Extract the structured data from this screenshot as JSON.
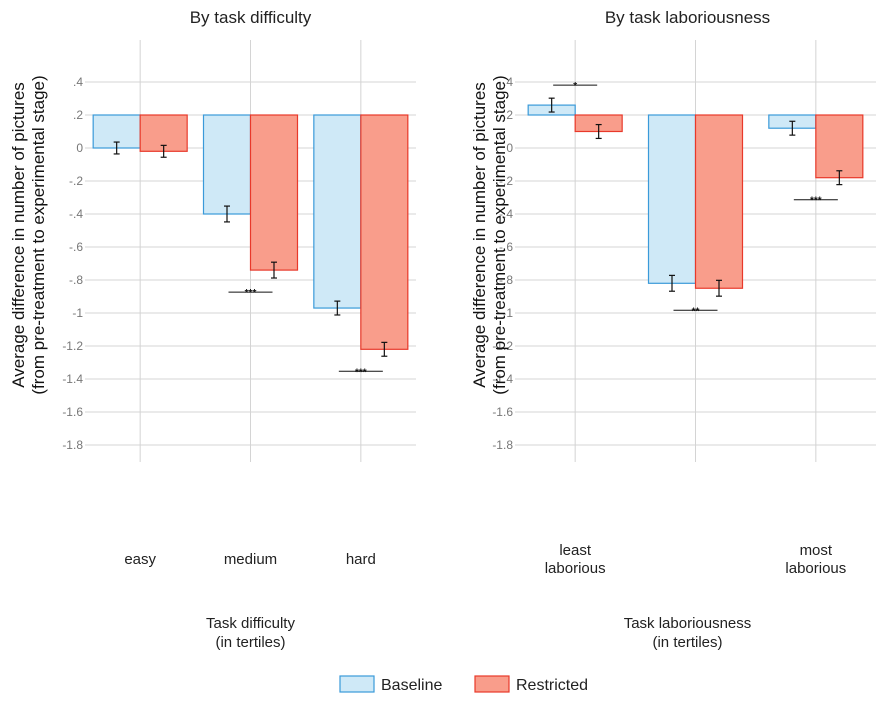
{
  "chart_data": [
    {
      "type": "bar",
      "title": "By task difficulty",
      "xlabel_lines": [
        "Task difficulty",
        "(in tertiles)"
      ],
      "ylabel_lines": [
        "Average difference in number of pictures",
        "(from pre-treatment to experimental stage)"
      ],
      "categories": [
        [
          "easy"
        ],
        [
          "medium"
        ],
        [
          "hard"
        ]
      ],
      "series": [
        {
          "name": "Baseline",
          "values": [
            0.0,
            -0.4,
            -0.97
          ],
          "err": [
            0.06,
            0.08,
            0.07
          ]
        },
        {
          "name": "Restricted",
          "values": [
            -0.02,
            -0.74,
            -1.22
          ],
          "err": [
            0.06,
            0.08,
            0.07
          ]
        }
      ],
      "significance": [
        "",
        "***",
        "***"
      ],
      "ylim": [
        -1.8,
        0.4
      ]
    },
    {
      "type": "bar",
      "title": "By task laboriousness",
      "xlabel_lines": [
        "Task laboriousness",
        "(in tertiles)"
      ],
      "ylabel_lines": [
        "Average difference in number of pictures",
        "(from pre-treatment to experimental stage)"
      ],
      "categories": [
        [
          "least",
          "laborious"
        ],
        [],
        [
          "most",
          "laborious"
        ]
      ],
      "series": [
        {
          "name": "Baseline",
          "values": [
            0.26,
            -0.82,
            0.12
          ],
          "err": [
            0.07,
            0.08,
            0.07
          ]
        },
        {
          "name": "Restricted",
          "values": [
            0.1,
            -0.85,
            -0.18
          ],
          "err": [
            0.07,
            0.08,
            0.07
          ]
        }
      ],
      "significance": [
        "*",
        "**",
        "***"
      ],
      "ylim": [
        -1.8,
        0.4
      ]
    }
  ],
  "y_ticks": [
    {
      "label": ".4",
      "v": 0.4
    },
    {
      "label": ".2",
      "v": 0.2
    },
    {
      "label": "0",
      "v": 0.0
    },
    {
      "label": "-.2",
      "v": -0.2
    },
    {
      "label": "-.4",
      "v": -0.4
    },
    {
      "label": "-.6",
      "v": -0.6
    },
    {
      "label": "-.8",
      "v": -0.8
    },
    {
      "label": "-1",
      "v": -1.0
    },
    {
      "label": "-1.2",
      "v": -1.2
    },
    {
      "label": "-1.4",
      "v": -1.4
    },
    {
      "label": "-1.6",
      "v": -1.6
    },
    {
      "label": "-1.8",
      "v": -1.8
    }
  ],
  "legend": [
    {
      "label": "Baseline",
      "fill": "#cfe9f7",
      "stroke": "#3a9ad9"
    },
    {
      "label": "Restricted",
      "fill": "#f99d8b",
      "stroke": "#e8392a"
    }
  ],
  "colors": {
    "baseline_fill": "#cfe9f7",
    "baseline_stroke": "#3a9ad9",
    "restricted_fill": "#f99d8b",
    "restricted_stroke": "#e8392a",
    "grid": "#d4d4d4"
  }
}
